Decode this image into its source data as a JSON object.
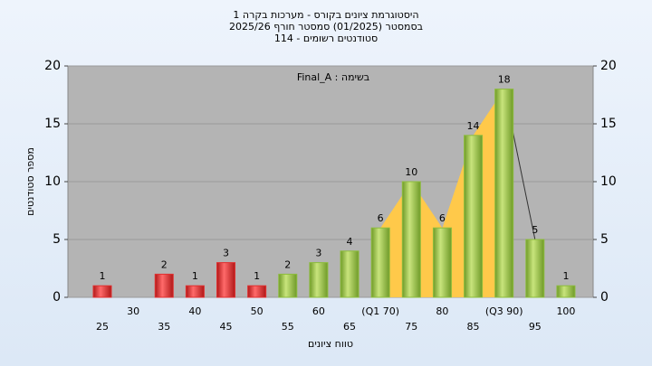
{
  "chart_data": {
    "type": "bar",
    "title": "היסטוגרמת ציונים בקורס - מערכות בקרה 1",
    "subtitle": "בסמסטר (01/2025) סמסטר חורף 2025/26",
    "subtitle2": "סטודנטים רשומים - 114",
    "annotation": "Final_A : בשימה",
    "x_label": "טווח ציונים",
    "y_label": "מספר סטודנטים",
    "categories": [
      "25",
      "30",
      "35",
      "40",
      "45",
      "50",
      "55",
      "60",
      "65",
      "(Q1 70)",
      "75",
      "80",
      "85",
      "(Q3 90)",
      "95",
      "100"
    ],
    "values": [
      1,
      0,
      2,
      1,
      3,
      1,
      2,
      3,
      4,
      6,
      10,
      6,
      14,
      18,
      5,
      1
    ],
    "colors": [
      "#e03030",
      "#e03030",
      "#e03030",
      "#e03030",
      "#e03030",
      "#e03030",
      "#8cbc3c",
      "#8cbc3c",
      "#8cbc3c",
      "#8cbc3c",
      "#8cbc3c",
      "#8cbc3c",
      "#8cbc3c",
      "#8cbc3c",
      "#8cbc3c",
      "#8cbc3c"
    ],
    "ylim": [
      0,
      20
    ],
    "yticks": [
      0,
      5,
      10,
      15,
      20
    ],
    "y2lim": [
      0,
      20
    ],
    "y2ticks": [
      0,
      5,
      10,
      15,
      20
    ],
    "grid": true
  }
}
